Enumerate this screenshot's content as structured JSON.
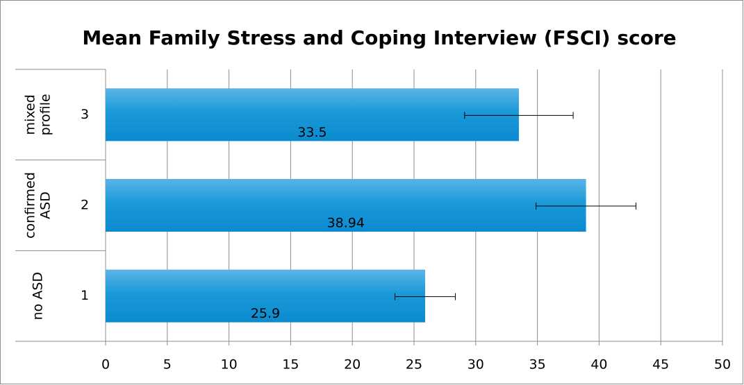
{
  "chart_data": {
    "type": "barh",
    "title": "Mean Family Stress and Coping Interview (FSCI) score",
    "categories": [
      "1",
      "2",
      "3"
    ],
    "groups": [
      [
        "no ASD"
      ],
      [
        "confirmed",
        "ASD"
      ],
      [
        "mixed",
        "profile"
      ]
    ],
    "values": [
      25.9,
      38.94,
      33.5
    ],
    "errors": [
      2.45,
      4.05,
      4.4
    ],
    "color": "#1a9ad8",
    "xlim": [
      0,
      50
    ],
    "xticks": [
      0,
      5,
      10,
      15,
      20,
      25,
      30,
      35,
      40,
      45,
      50
    ],
    "grid": true
  }
}
